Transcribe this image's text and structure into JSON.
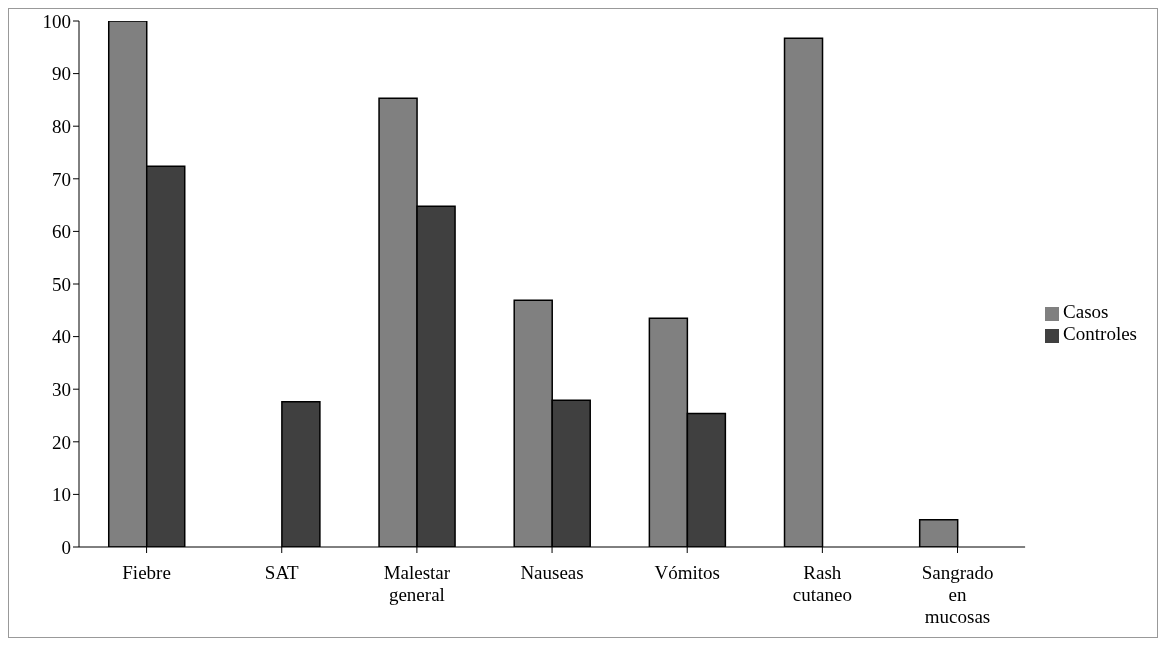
{
  "chart_data": {
    "type": "bar",
    "categories": [
      "Fiebre",
      "SAT",
      "Malestar general",
      "Nauseas",
      "Vómitos",
      "Rash cutaneo",
      "Sangrado en mucosas"
    ],
    "series": [
      {
        "name": "Casos",
        "color": "#808080",
        "values": [
          100,
          null,
          85.3,
          46.9,
          43.5,
          96.7,
          5.2
        ]
      },
      {
        "name": "Controles",
        "color": "#404040",
        "values": [
          72.4,
          27.6,
          64.8,
          27.9,
          25.4,
          null,
          null
        ]
      }
    ],
    "ylim": [
      0,
      100
    ],
    "yticks": [
      0,
      10,
      20,
      30,
      40,
      50,
      60,
      70,
      80,
      90,
      100
    ],
    "grid": false,
    "legend": "right"
  }
}
